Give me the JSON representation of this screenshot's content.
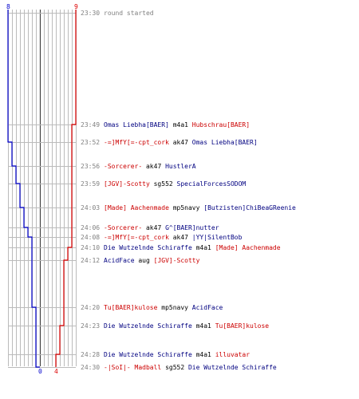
{
  "colors": {
    "blue_team": "#0000cc",
    "red_team": "#dd0000",
    "blue_text": "#000080",
    "red_text": "#cc0000",
    "grid": "#bbbbbb",
    "center": "#444444",
    "timestamp": "#808080"
  },
  "axis": {
    "blue_top": "8",
    "red_top": "9",
    "blue_bottom": "0",
    "red_bottom": "4"
  },
  "events": [
    {
      "time": "23:30",
      "text": "round started"
    },
    {
      "time": "23:49",
      "killer": "Omas Liebha[BAER]",
      "kteam": "blue",
      "weapon": "m4a1",
      "victim": "Hubschrau[BAER]",
      "vteam": "red"
    },
    {
      "time": "23:52",
      "killer": "-=]MfY[=-cpt_cork",
      "kteam": "red",
      "weapon": "ak47",
      "victim": "Omas Liebha[BAER]",
      "vteam": "blue"
    },
    {
      "time": "23:56",
      "killer": "-Sorcerer-",
      "kteam": "red",
      "weapon": "ak47",
      "victim": "HustlerA",
      "vteam": "blue"
    },
    {
      "time": "23:59",
      "killer": "[JGV]-Scotty",
      "kteam": "red",
      "weapon": "sg552",
      "victim": "SpecialForcesSODOM",
      "vteam": "blue"
    },
    {
      "time": "24:03",
      "killer": "[Made] Aachenmade",
      "kteam": "red",
      "weapon": "mp5navy",
      "victim": "[Butzisten]ChiBeaGReenie",
      "vteam": "blue"
    },
    {
      "time": "24:06",
      "killer": "-Sorcerer-",
      "kteam": "red",
      "weapon": "ak47",
      "victim": "G^[BAER]nutter",
      "vteam": "blue"
    },
    {
      "time": "24:08",
      "killer": "-=]MfY[=-cpt_cork",
      "kteam": "red",
      "weapon": "ak47",
      "victim": "|YY|SilentBob",
      "vteam": "blue"
    },
    {
      "time": "24:10",
      "killer": "Die Wutzelnde Schiraffe",
      "kteam": "blue",
      "weapon": "m4a1",
      "victim": "[Made] Aachenmade",
      "vteam": "red"
    },
    {
      "time": "24:12",
      "killer": "AcidFace",
      "kteam": "blue",
      "weapon": "aug",
      "victim": "[JGV]-Scotty",
      "vteam": "red"
    },
    {
      "time": "24:20",
      "killer": "Tu[BAER]kulose",
      "kteam": "red",
      "weapon": "mp5navy",
      "victim": "AcidFace",
      "vteam": "blue"
    },
    {
      "time": "24:23",
      "killer": "Die Wutzelnde Schiraffe",
      "kteam": "blue",
      "weapon": "m4a1",
      "victim": "Tu[BAER]kulose",
      "vteam": "red"
    },
    {
      "time": "24:28",
      "killer": "Die Wutzelnde Schiraffe",
      "kteam": "blue",
      "weapon": "m4a1",
      "victim": "illuvatar",
      "vteam": "red"
    },
    {
      "time": "24:30",
      "killer": "-|SoI|- Madball",
      "kteam": "red",
      "weapon": "sg552",
      "victim": "Die Wutzelnde Schiraffe",
      "vteam": "blue"
    }
  ],
  "chart_data": {
    "type": "line",
    "x": [
      "23:30",
      "23:49",
      "23:52",
      "23:56",
      "23:59",
      "24:03",
      "24:06",
      "24:08",
      "24:10",
      "24:12",
      "24:20",
      "24:23",
      "24:28",
      "24:30"
    ],
    "series": [
      {
        "values": [
          8,
          8,
          7,
          6,
          5,
          4,
          3,
          2,
          2,
          2,
          1,
          1,
          1,
          0
        ]
      },
      {
        "values": [
          9,
          8,
          8,
          8,
          8,
          8,
          8,
          8,
          7,
          6,
          6,
          5,
          4,
          4
        ]
      }
    ],
    "ylim": [
      0,
      9
    ]
  }
}
